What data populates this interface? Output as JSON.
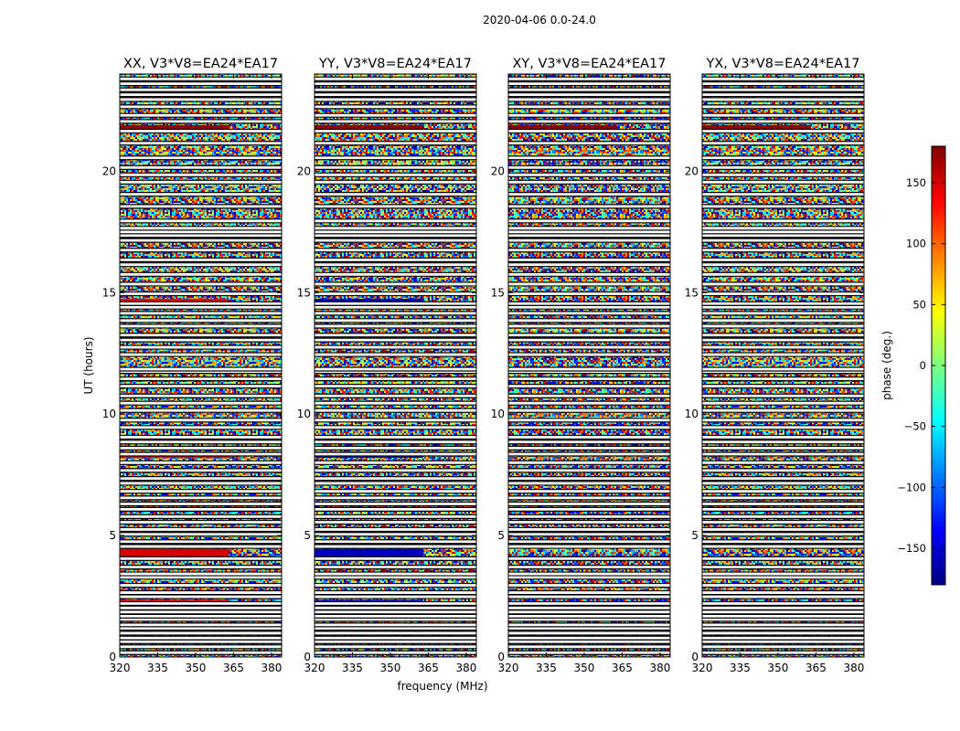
{
  "figure": {
    "suptitle": "2020-04-06 0.0-24.0",
    "shared_xlabel": "frequency (MHz)",
    "shared_ylabel": "UT (hours)"
  },
  "chart_data": {
    "type": "heatmap",
    "panels": [
      {
        "title": "XX, V3*V8=EA24*EA17",
        "pol": "XX"
      },
      {
        "title": "YY, V3*V8=EA24*EA17",
        "pol": "YY"
      },
      {
        "title": "XY, V3*V8=EA24*EA17",
        "pol": "XY"
      },
      {
        "title": "YX, V3*V8=EA24*EA17",
        "pol": "YX"
      }
    ],
    "xlim": [
      320,
      384
    ],
    "ylim": [
      0,
      24
    ],
    "x_ticks": [
      320,
      335,
      350,
      365,
      380
    ],
    "y_ticks": [
      0,
      5,
      10,
      15,
      20
    ],
    "colorbar": {
      "label": "phase (deg.)",
      "range": [
        -180,
        180
      ],
      "ticks": [
        150,
        100,
        50,
        0,
        -50,
        -100,
        -150
      ],
      "tick_labels": [
        "150",
        "100",
        "50",
        "0",
        "−50",
        "−100",
        "−150"
      ],
      "colormap": "jet",
      "colors": [
        "#00007f",
        "#0000ff",
        "#007fff",
        "#00ffff",
        "#7fff7f",
        "#ffff00",
        "#ff7f00",
        "#ff0000",
        "#7f0000"
      ]
    },
    "flagged_rows_ut": [
      0.18,
      0.42,
      0.63,
      0.78,
      0.98,
      1.18,
      1.32,
      1.55,
      1.68,
      1.85,
      2.02,
      2.2,
      2.48,
      2.65,
      2.95,
      3.28,
      3.42,
      3.7,
      4.05,
      4.55,
      4.75,
      5.05,
      5.25,
      5.55,
      5.78,
      6.08,
      6.3,
      6.55,
      6.82,
      7.15,
      7.35,
      7.68,
      8.0,
      8.35,
      8.6,
      8.85,
      9.05,
      9.45,
      9.75,
      10.15,
      10.45,
      10.75,
      11.15,
      11.45,
      11.75,
      11.85,
      12.45,
      12.75,
      13.05,
      13.25,
      13.62,
      13.85,
      14.15,
      14.4,
      14.55,
      14.95,
      15.35,
      15.75,
      16.15,
      16.35,
      16.75,
      17.15,
      17.35,
      17.5,
      17.65,
      17.95,
      18.55,
      19.05,
      19.55,
      19.85,
      20.15,
      20.55,
      21.15,
      21.65,
      22.05,
      22.3,
      22.65,
      22.95,
      23.15,
      23.35,
      23.6,
      23.8
    ],
    "coherent_bands": [
      {
        "pols": [
          "XX"
        ],
        "ut": [
          14.5,
          14.75
        ],
        "phase": 140
      },
      {
        "pols": [
          "YY"
        ],
        "ut": [
          14.5,
          14.75
        ],
        "phase": -160
      },
      {
        "pols": [
          "XX"
        ],
        "ut": [
          8.2,
          8.45
        ],
        "phase": 140
      },
      {
        "pols": [
          "YY"
        ],
        "ut": [
          8.2,
          8.45
        ],
        "phase": -160
      },
      {
        "pols": [
          "XX"
        ],
        "ut": [
          4.1,
          4.45
        ],
        "phase": 150
      },
      {
        "pols": [
          "YY"
        ],
        "ut": [
          4.1,
          4.45
        ],
        "phase": -160
      },
      {
        "pols": [
          "XX"
        ],
        "ut": [
          2.1,
          2.35
        ],
        "phase": 140
      },
      {
        "pols": [
          "YY"
        ],
        "ut": [
          2.1,
          2.35
        ],
        "phase": -160
      },
      {
        "pols": [
          "XX",
          "YY"
        ],
        "ut": [
          21.65,
          21.9
        ],
        "phase": 175
      },
      {
        "pols": [
          "XY",
          "YX"
        ],
        "ut": [
          21.65,
          21.9
        ],
        "phase": 175
      },
      {
        "pols": [
          "XX"
        ],
        "ut": [
          23.0,
          23.2
        ],
        "phase": 150
      },
      {
        "pols": [
          "YY"
        ],
        "ut": [
          23.0,
          23.2
        ],
        "phase": -170
      }
    ]
  }
}
